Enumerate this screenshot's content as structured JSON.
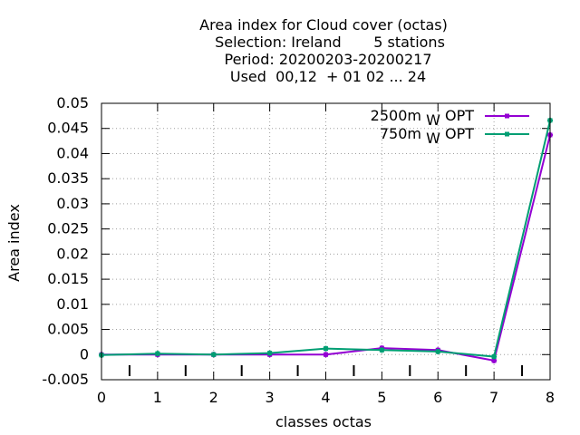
{
  "chart_data": {
    "type": "line",
    "title_lines": [
      "Area index  for Cloud cover (octas)",
      "Selection: Ireland       5 stations",
      "Period: 20200203-20200217",
      "Used  00,12  + 01 02 ... 24"
    ],
    "xlabel": "classes octas",
    "ylabel": "Area index",
    "x": [
      0,
      1,
      2,
      3,
      4,
      5,
      6,
      7,
      8
    ],
    "xlim": [
      0,
      8
    ],
    "ylim": [
      -0.005,
      0.05
    ],
    "x_ticks": [
      "0",
      "1",
      "2",
      "3",
      "4",
      "5",
      "6",
      "7",
      "8"
    ],
    "y_ticks": [
      "-0.005",
      "0",
      "0.005",
      "0.01",
      "0.015",
      "0.02",
      "0.025",
      "0.03",
      "0.035",
      "0.04",
      "0.045",
      "0.05"
    ],
    "grid": true,
    "legend_position": "top-right",
    "series": [
      {
        "name_main": "2500m",
        "name_sub": "W",
        "name_tail": "OPT",
        "color": "#9400d3",
        "values": [
          0.0,
          0.0,
          0.0,
          0.0,
          0.0,
          0.0013,
          0.0009,
          -0.0012,
          0.0437
        ]
      },
      {
        "name_main": "750m",
        "name_sub": "W",
        "name_tail": "OPT",
        "color": "#009e73",
        "values": [
          -0.0001,
          0.0002,
          0.0,
          0.0003,
          0.0012,
          0.0009,
          0.0006,
          -0.0004,
          0.0466
        ]
      }
    ]
  }
}
